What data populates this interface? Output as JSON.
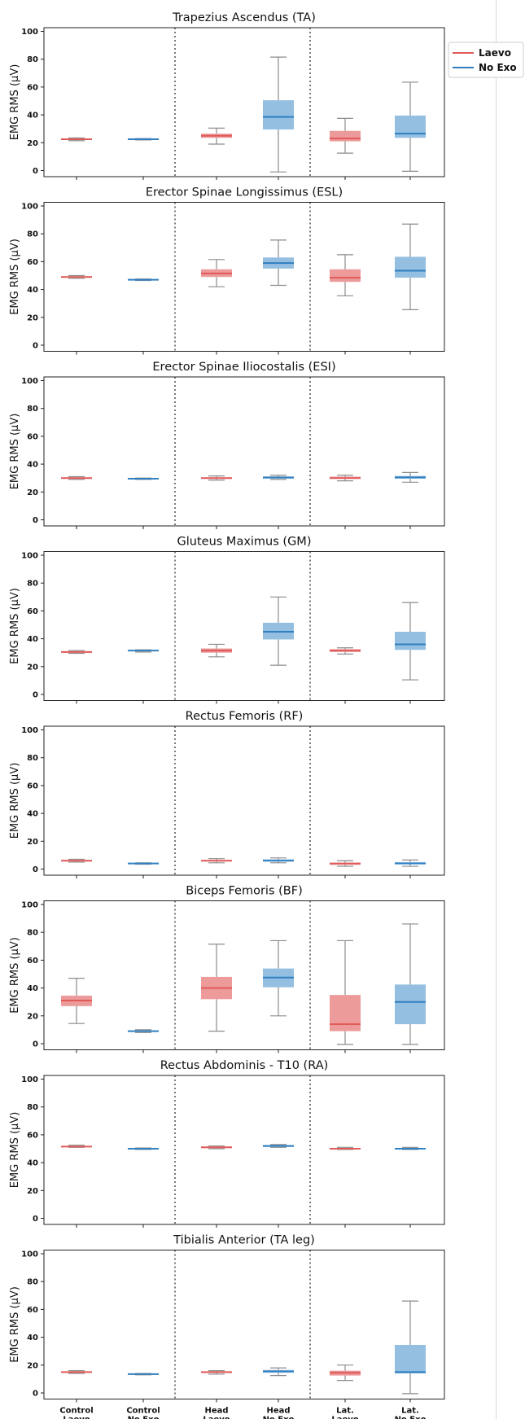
{
  "colors": {
    "laevo": "#e05a5a",
    "laevo_fill": "#ec9a9a",
    "noexo": "#2f7fc1",
    "noexo_fill": "#95bfe0",
    "whisker": "#8c8c8c"
  },
  "legend": [
    {
      "label": "Laevo",
      "color": "#e05a5a"
    },
    {
      "label": "No Exo",
      "color": "#2f7fc1"
    }
  ],
  "categories": [
    {
      "line1": "Control",
      "line2": "Laevo"
    },
    {
      "line1": "Control",
      "line2": "No Exo"
    },
    {
      "line1": "Head",
      "line2": "Laevo"
    },
    {
      "line1": "Head",
      "line2": "No Exo"
    },
    {
      "line1": "Lat.",
      "line2": "Laevo"
    },
    {
      "line1": "Lat.",
      "line2": "No Exo"
    }
  ],
  "chart_data": [
    {
      "type": "box",
      "title": "Trapezius Ascendus (TA)",
      "ylabel": "EMG RMS (μV)",
      "ylim": [
        0,
        100
      ],
      "yticks": [
        0,
        20,
        40,
        60,
        80,
        100
      ],
      "boxes": [
        {
          "series": "Laevo",
          "min": 21.5,
          "q1": 22,
          "median": 22.5,
          "q3": 23,
          "max": 23.5
        },
        {
          "series": "No Exo",
          "min": 22,
          "q1": 22.2,
          "median": 22.5,
          "q3": 22.8,
          "max": 23
        },
        {
          "series": "Laevo",
          "min": 19,
          "q1": 23.5,
          "median": 25,
          "q3": 26.5,
          "max": 30.5
        },
        {
          "series": "No Exo",
          "min": -1,
          "q1": 29.5,
          "median": 38.5,
          "q3": 50.5,
          "max": 81.5
        },
        {
          "series": "Laevo",
          "min": 12.5,
          "q1": 21,
          "median": 23,
          "q3": 28.5,
          "max": 37.5
        },
        {
          "series": "No Exo",
          "min": -0.5,
          "q1": 23.5,
          "median": 26.5,
          "q3": 39.5,
          "max": 63.5
        }
      ]
    },
    {
      "type": "box",
      "title": "Erector Spinae Longissimus (ESL)",
      "ylabel": "EMG RMS (μV)",
      "ylim": [
        0,
        100
      ],
      "yticks": [
        0,
        20,
        40,
        60,
        80,
        100
      ],
      "boxes": [
        {
          "series": "Laevo",
          "min": 48,
          "q1": 48.5,
          "median": 49,
          "q3": 49.5,
          "max": 50
        },
        {
          "series": "No Exo",
          "min": 46.5,
          "q1": 46.8,
          "median": 47,
          "q3": 47.3,
          "max": 47.5
        },
        {
          "series": "Laevo",
          "min": 42,
          "q1": 49,
          "median": 51.5,
          "q3": 54.5,
          "max": 61.5
        },
        {
          "series": "No Exo",
          "min": 43,
          "q1": 55,
          "median": 59,
          "q3": 63,
          "max": 75.5
        },
        {
          "series": "Laevo",
          "min": 35.5,
          "q1": 45.5,
          "median": 48.5,
          "q3": 54.5,
          "max": 65
        },
        {
          "series": "No Exo",
          "min": 25.5,
          "q1": 48.5,
          "median": 53.5,
          "q3": 63.5,
          "max": 87
        }
      ]
    },
    {
      "type": "box",
      "title": "Erector Spinae Iliocostalis (ESI)",
      "ylabel": "EMG RMS (μV)",
      "ylim": [
        0,
        100
      ],
      "yticks": [
        0,
        20,
        40,
        60,
        80,
        100
      ],
      "boxes": [
        {
          "series": "Laevo",
          "min": 29,
          "q1": 29.5,
          "median": 30,
          "q3": 30.5,
          "max": 31
        },
        {
          "series": "No Exo",
          "min": 29,
          "q1": 29.3,
          "median": 29.5,
          "q3": 29.8,
          "max": 30
        },
        {
          "series": "Laevo",
          "min": 28.5,
          "q1": 29.5,
          "median": 30,
          "q3": 30.5,
          "max": 31.5
        },
        {
          "series": "No Exo",
          "min": 29,
          "q1": 29.5,
          "median": 30.5,
          "q3": 31,
          "max": 32
        },
        {
          "series": "Laevo",
          "min": 28,
          "q1": 29.5,
          "median": 30,
          "q3": 31,
          "max": 32
        },
        {
          "series": "No Exo",
          "min": 27,
          "q1": 29.5,
          "median": 30.5,
          "q3": 31.5,
          "max": 34
        }
      ]
    },
    {
      "type": "box",
      "title": "Gluteus Maximus (GM)",
      "ylabel": "EMG RMS (μV)",
      "ylim": [
        0,
        100
      ],
      "yticks": [
        0,
        20,
        40,
        60,
        80,
        100
      ],
      "boxes": [
        {
          "series": "Laevo",
          "min": 29.5,
          "q1": 30,
          "median": 30.5,
          "q3": 31,
          "max": 31.5
        },
        {
          "series": "No Exo",
          "min": 30.5,
          "q1": 31,
          "median": 31.5,
          "q3": 31.8,
          "max": 32
        },
        {
          "series": "Laevo",
          "min": 27,
          "q1": 30,
          "median": 31.5,
          "q3": 33,
          "max": 36
        },
        {
          "series": "No Exo",
          "min": 21,
          "q1": 39.5,
          "median": 45,
          "q3": 51.5,
          "max": 70
        },
        {
          "series": "Laevo",
          "min": 29,
          "q1": 30.5,
          "median": 31.5,
          "q3": 32.5,
          "max": 33.5
        },
        {
          "series": "No Exo",
          "min": 10.5,
          "q1": 32,
          "median": 36,
          "q3": 45,
          "max": 66
        }
      ]
    },
    {
      "type": "box",
      "title": "Rectus Femoris (RF)",
      "ylabel": "EMG RMS (μV)",
      "ylim": [
        0,
        100
      ],
      "yticks": [
        0,
        20,
        40,
        60,
        80,
        100
      ],
      "boxes": [
        {
          "series": "Laevo",
          "min": 5,
          "q1": 5.5,
          "median": 6,
          "q3": 6.5,
          "max": 7
        },
        {
          "series": "No Exo",
          "min": 3.5,
          "q1": 3.8,
          "median": 4,
          "q3": 4.3,
          "max": 4.5
        },
        {
          "series": "Laevo",
          "min": 4.5,
          "q1": 5.5,
          "median": 6,
          "q3": 6.5,
          "max": 7.5
        },
        {
          "series": "No Exo",
          "min": 4.5,
          "q1": 5.5,
          "median": 6,
          "q3": 7,
          "max": 8
        },
        {
          "series": "Laevo",
          "min": 2,
          "q1": 3,
          "median": 4,
          "q3": 4.5,
          "max": 6
        },
        {
          "series": "No Exo",
          "min": 2,
          "q1": 3.5,
          "median": 4,
          "q3": 5,
          "max": 6.5
        }
      ]
    },
    {
      "type": "box",
      "title": "Biceps Femoris (BF)",
      "ylabel": "EMG RMS (μV)",
      "ylim": [
        0,
        100
      ],
      "yticks": [
        0,
        20,
        40,
        60,
        80,
        100
      ],
      "boxes": [
        {
          "series": "Laevo",
          "min": 14.5,
          "q1": 27,
          "median": 31,
          "q3": 34.5,
          "max": 47
        },
        {
          "series": "No Exo",
          "min": 8,
          "q1": 8.5,
          "median": 9,
          "q3": 9.5,
          "max": 10
        },
        {
          "series": "Laevo",
          "min": 9,
          "q1": 32,
          "median": 40,
          "q3": 48,
          "max": 71.5
        },
        {
          "series": "No Exo",
          "min": 20,
          "q1": 40.5,
          "median": 47.5,
          "q3": 54,
          "max": 74
        },
        {
          "series": "Laevo",
          "min": -0.5,
          "q1": 9,
          "median": 14,
          "q3": 35,
          "max": 74
        },
        {
          "series": "No Exo",
          "min": -0.5,
          "q1": 14,
          "median": 30,
          "q3": 42.5,
          "max": 86
        }
      ]
    },
    {
      "type": "box",
      "title": "Rectus Abdominis - T10 (RA)",
      "ylabel": "EMG RMS (μV)",
      "ylim": [
        0,
        100
      ],
      "yticks": [
        0,
        20,
        40,
        60,
        80,
        100
      ],
      "boxes": [
        {
          "series": "Laevo",
          "min": 51,
          "q1": 51.3,
          "median": 51.5,
          "q3": 52,
          "max": 52.5
        },
        {
          "series": "No Exo",
          "min": 49.5,
          "q1": 49.8,
          "median": 50,
          "q3": 50.3,
          "max": 50.5
        },
        {
          "series": "Laevo",
          "min": 50,
          "q1": 50.5,
          "median": 51,
          "q3": 51.5,
          "max": 52
        },
        {
          "series": "No Exo",
          "min": 51,
          "q1": 51.3,
          "median": 52,
          "q3": 52.5,
          "max": 53
        },
        {
          "series": "Laevo",
          "min": 49.5,
          "q1": 49.8,
          "median": 50,
          "q3": 50.5,
          "max": 51
        },
        {
          "series": "No Exo",
          "min": 49.5,
          "q1": 49.8,
          "median": 50,
          "q3": 50.5,
          "max": 51
        }
      ]
    },
    {
      "type": "box",
      "title": "Tibialis Anterior (TA leg)",
      "ylabel": "EMG RMS (μV)",
      "ylim": [
        0,
        100
      ],
      "yticks": [
        0,
        20,
        40,
        60,
        80,
        100
      ],
      "boxes": [
        {
          "series": "Laevo",
          "min": 14,
          "q1": 14.5,
          "median": 15,
          "q3": 15.5,
          "max": 16
        },
        {
          "series": "No Exo",
          "min": 13,
          "q1": 13.3,
          "median": 13.5,
          "q3": 13.8,
          "max": 14
        },
        {
          "series": "Laevo",
          "min": 13.5,
          "q1": 14.3,
          "median": 15,
          "q3": 15.5,
          "max": 16
        },
        {
          "series": "No Exo",
          "min": 12.5,
          "q1": 14.5,
          "median": 15.5,
          "q3": 16.5,
          "max": 18
        },
        {
          "series": "Laevo",
          "min": 9,
          "q1": 12.5,
          "median": 14.5,
          "q3": 16,
          "max": 20
        },
        {
          "series": "No Exo",
          "min": -0.5,
          "q1": 14,
          "median": 15,
          "q3": 34.5,
          "max": 66
        }
      ]
    }
  ]
}
